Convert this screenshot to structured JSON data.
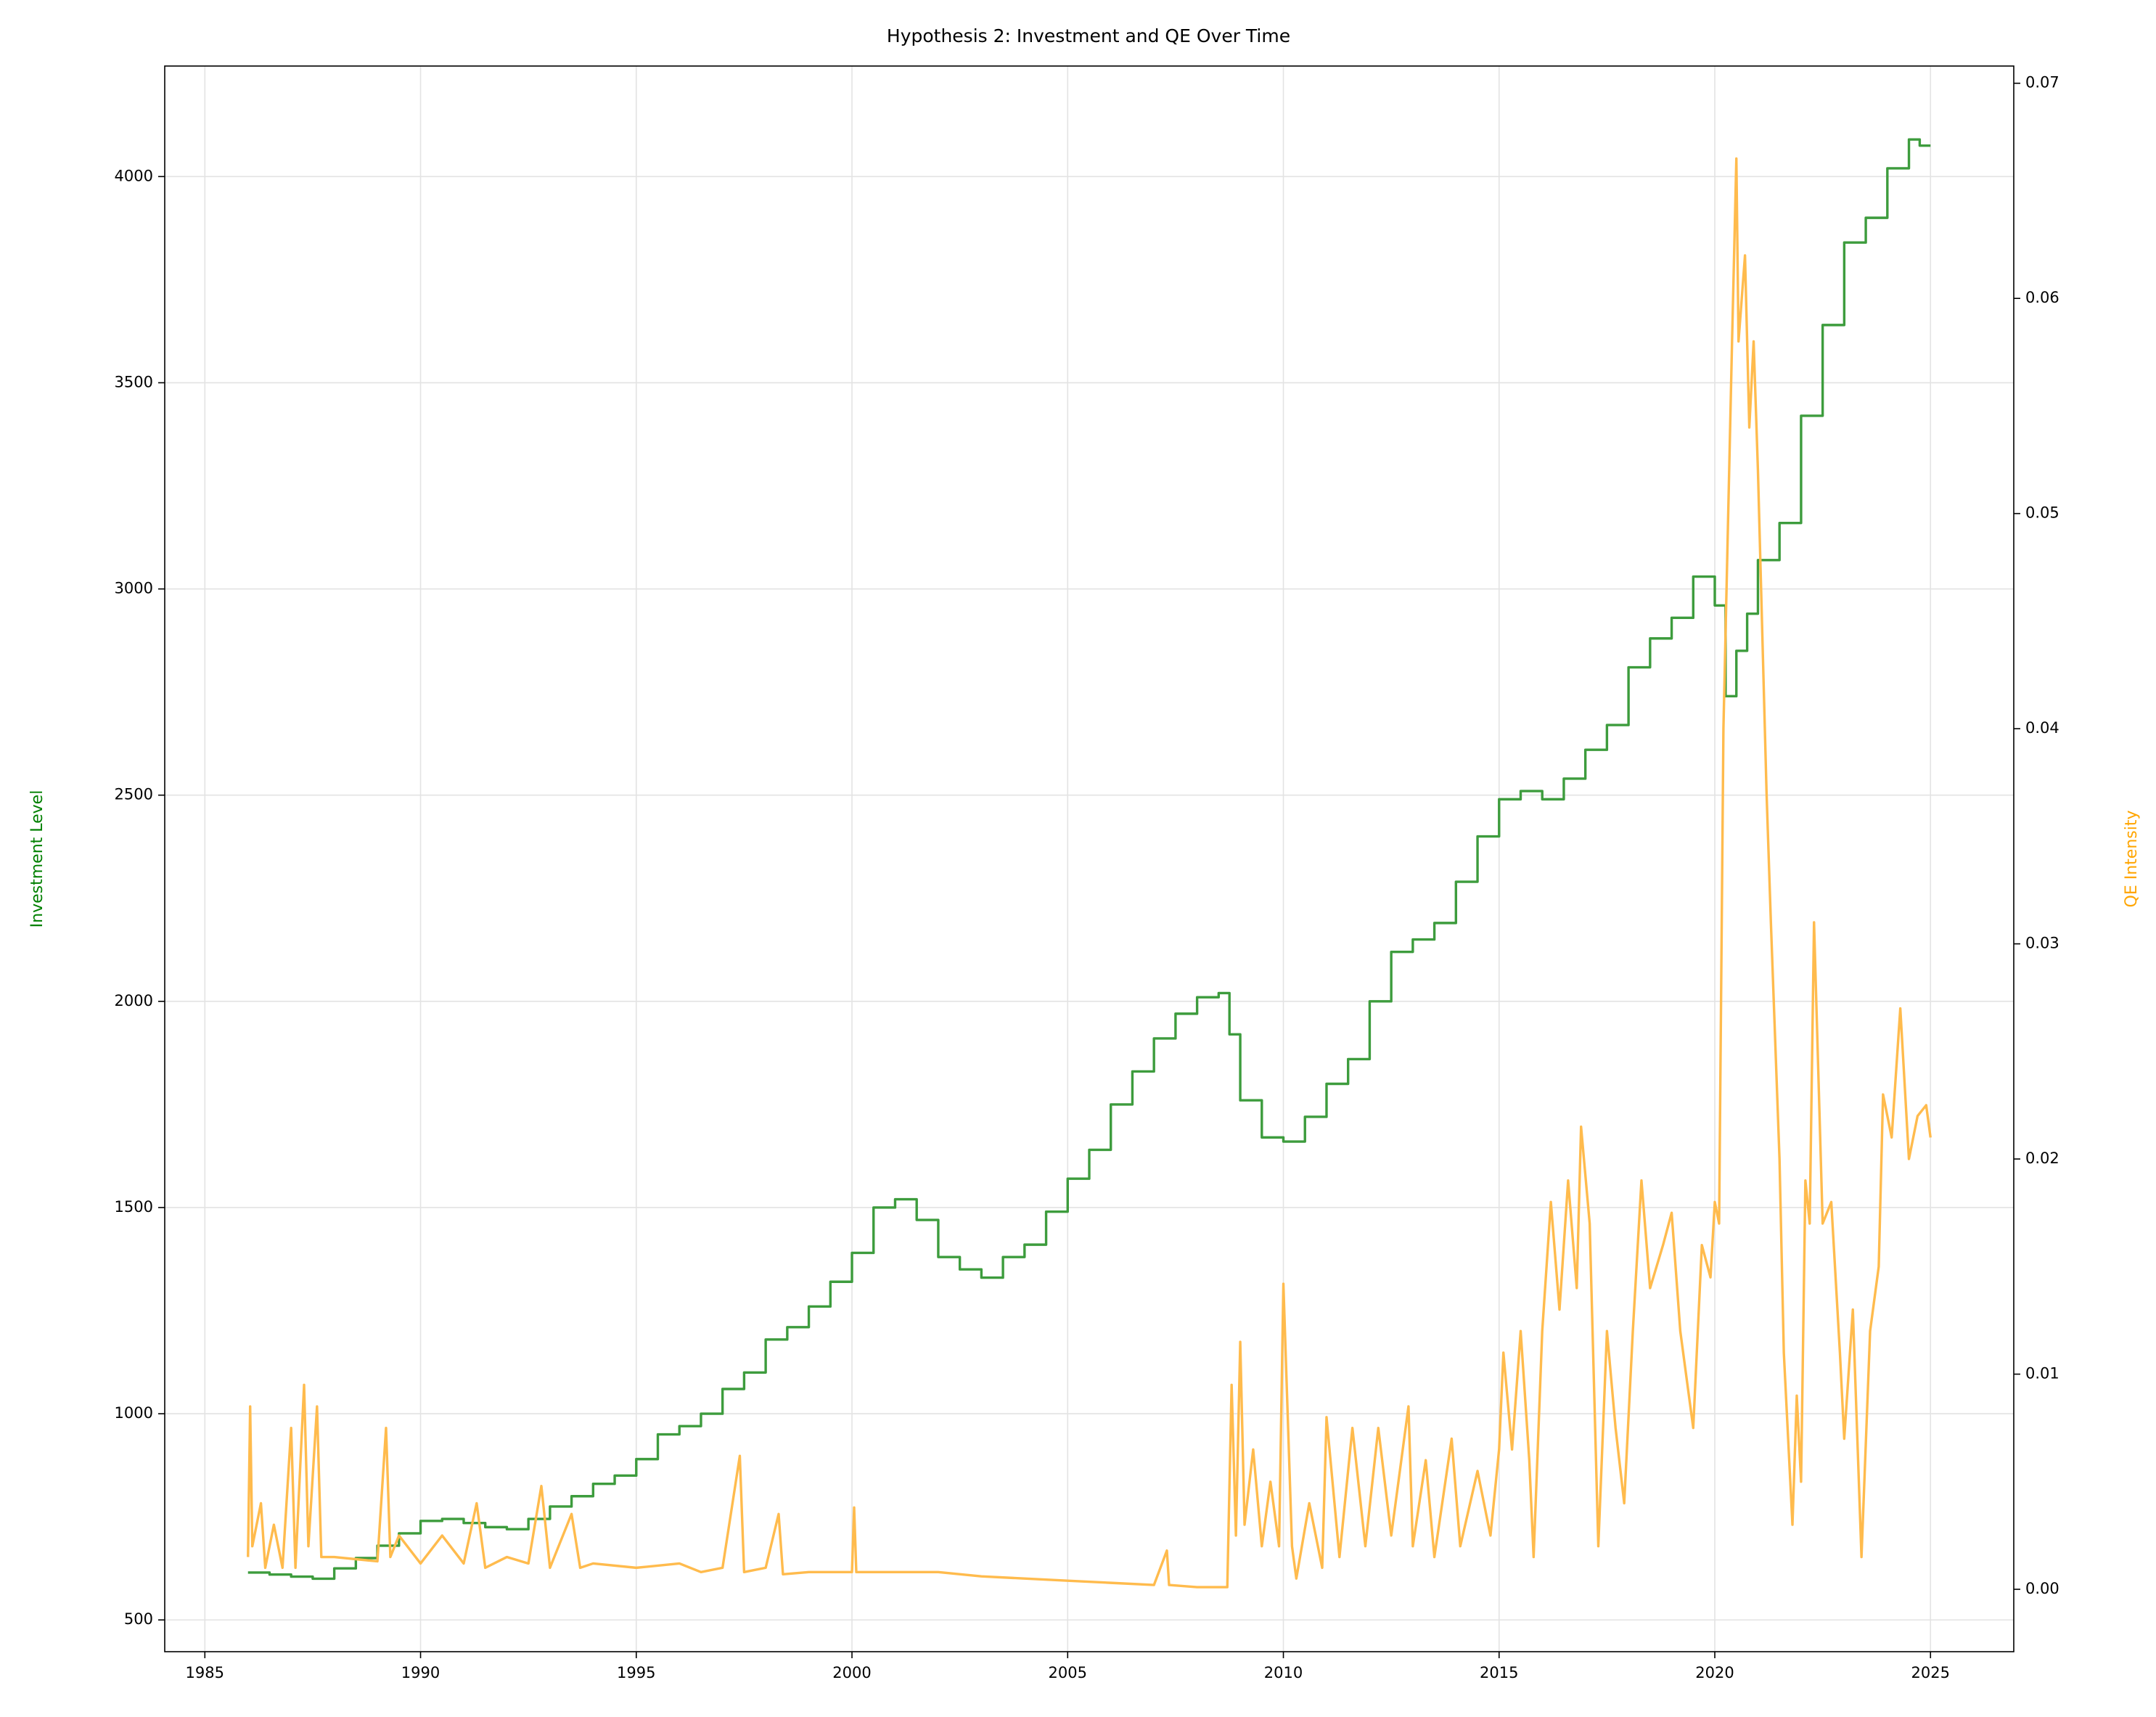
{
  "chart_data": {
    "type": "line",
    "title": "Hypothesis 2: Investment and QE Over Time",
    "ylabel": "Investment Level",
    "ylabel_color": "#008000",
    "y2label": "QE Intensity",
    "y2label_color": "#ffa500",
    "xlim": [
      1984.07,
      2026.93
    ],
    "xticks": [
      1985,
      1990,
      1995,
      2000,
      2005,
      2010,
      2015,
      2020,
      2025
    ],
    "ylim": [
      423,
      4268
    ],
    "yticks": [
      500,
      1000,
      1500,
      2000,
      2500,
      3000,
      3500,
      4000
    ],
    "y2lim": [
      -0.0029,
      0.0708
    ],
    "y2ticks": [
      {
        "value": 0,
        "label": "0.00"
      },
      0.01,
      0.02,
      0.03,
      0.04,
      0.05,
      0.06,
      0.07
    ],
    "grid": true,
    "series": [
      {
        "color": "#3d9c3d",
        "step": true,
        "x": [
          1986.0,
          1986.5,
          1987.0,
          1987.5,
          1988.0,
          1988.5,
          1989.0,
          1989.5,
          1990.0,
          1990.5,
          1991.0,
          1991.5,
          1992.0,
          1992.5,
          1993.0,
          1993.5,
          1994.0,
          1994.5,
          1995.0,
          1995.5,
          1996.0,
          1996.5,
          1997.0,
          1997.5,
          1998.0,
          1998.5,
          1999.0,
          1999.5,
          2000.0,
          2000.5,
          2001.0,
          2001.5,
          2002.0,
          2002.5,
          2003.0,
          2003.5,
          2004.0,
          2004.5,
          2005.0,
          2005.5,
          2006.0,
          2006.5,
          2007.0,
          2007.5,
          2008.0,
          2008.5,
          2008.75,
          2009.0,
          2009.5,
          2010.0,
          2010.5,
          2011.0,
          2011.5,
          2012.0,
          2012.5,
          2013.0,
          2013.5,
          2014.0,
          2014.5,
          2015.0,
          2015.5,
          2016.0,
          2016.5,
          2017.0,
          2017.5,
          2018.0,
          2018.5,
          2019.0,
          2019.5,
          2020.0,
          2020.25,
          2020.5,
          2020.75,
          2021.0,
          2021.5,
          2022.0,
          2022.5,
          2023.0,
          2023.5,
          2024.0,
          2024.5,
          2024.75,
          2025.0
        ],
        "values": [
          615,
          610,
          605,
          600,
          625,
          650,
          680,
          710,
          740,
          745,
          735,
          725,
          720,
          745,
          775,
          800,
          830,
          850,
          890,
          950,
          970,
          1000,
          1060,
          1100,
          1180,
          1210,
          1260,
          1320,
          1390,
          1500,
          1520,
          1470,
          1380,
          1350,
          1330,
          1380,
          1410,
          1490,
          1570,
          1640,
          1750,
          1830,
          1910,
          1970,
          2010,
          2020,
          1920,
          1760,
          1670,
          1660,
          1720,
          1800,
          1860,
          2000,
          2120,
          2150,
          2190,
          2290,
          2400,
          2490,
          2510,
          2490,
          2540,
          2610,
          2670,
          2810,
          2880,
          2930,
          3030,
          2960,
          2740,
          2850,
          2940,
          3070,
          3160,
          3420,
          3640,
          3840,
          3900,
          4020,
          4090,
          4075,
          4075
        ]
      },
      {
        "color": "#ffbb4d",
        "axis": "y2",
        "x": [
          1986.0,
          1986.05,
          1986.1,
          1986.3,
          1986.4,
          1986.6,
          1986.8,
          1987.0,
          1987.1,
          1987.3,
          1987.4,
          1987.6,
          1987.7,
          1988.0,
          1989.0,
          1989.2,
          1989.3,
          1989.5,
          1990.0,
          1990.5,
          1991.0,
          1991.3,
          1991.5,
          1992.0,
          1992.5,
          1992.8,
          1993.0,
          1993.5,
          1993.7,
          1994.0,
          1995.0,
          1996.0,
          1996.5,
          1997.0,
          1997.4,
          1997.5,
          1998.0,
          1998.3,
          1998.4,
          1999.0,
          2000.0,
          2000.05,
          2000.1,
          2001.0,
          2002.0,
          2003.0,
          2004.0,
          2005.0,
          2006.0,
          2007.0,
          2007.3,
          2007.35,
          2008.0,
          2008.7,
          2008.8,
          2008.9,
          2009.0,
          2009.1,
          2009.3,
          2009.5,
          2009.7,
          2009.9,
          2010.0,
          2010.2,
          2010.3,
          2010.6,
          2010.9,
          2011.0,
          2011.3,
          2011.6,
          2011.9,
          2012.2,
          2012.5,
          2012.9,
          2013.0,
          2013.3,
          2013.5,
          2013.9,
          2014.1,
          2014.5,
          2014.8,
          2015.0,
          2015.1,
          2015.3,
          2015.5,
          2015.7,
          2015.8,
          2016.0,
          2016.2,
          2016.4,
          2016.6,
          2016.8,
          2016.9,
          2017.1,
          2017.3,
          2017.5,
          2017.7,
          2017.9,
          2018.1,
          2018.3,
          2018.5,
          2018.8,
          2019.0,
          2019.2,
          2019.5,
          2019.7,
          2019.9,
          2020.0,
          2020.1,
          2020.2,
          2020.4,
          2020.5,
          2020.55,
          2020.7,
          2020.8,
          2020.9,
          2021.0,
          2021.2,
          2021.3,
          2021.5,
          2021.6,
          2021.8,
          2021.9,
          2022.0,
          2022.1,
          2022.2,
          2022.3,
          2022.4,
          2022.5,
          2022.7,
          2022.9,
          2023.0,
          2023.2,
          2023.4,
          2023.6,
          2023.8,
          2023.9,
          2024.1,
          2024.3,
          2024.5,
          2024.7,
          2024.9,
          2025.0
        ],
        "values": [
          0.0015,
          0.0085,
          0.002,
          0.004,
          0.001,
          0.003,
          0.001,
          0.0075,
          0.001,
          0.0095,
          0.002,
          0.0085,
          0.0015,
          0.0015,
          0.0013,
          0.0075,
          0.0015,
          0.0025,
          0.0012,
          0.0025,
          0.0012,
          0.004,
          0.001,
          0.0015,
          0.0012,
          0.0048,
          0.001,
          0.0035,
          0.001,
          0.0012,
          0.001,
          0.0012,
          0.0008,
          0.001,
          0.0062,
          0.0008,
          0.001,
          0.0035,
          0.0007,
          0.0008,
          0.0008,
          0.0038,
          0.0008,
          0.0008,
          0.0008,
          0.0006,
          0.0005,
          0.0004,
          0.0003,
          0.0002,
          0.0018,
          0.0002,
          0.0001,
          0.0001,
          0.0095,
          0.0025,
          0.0115,
          0.003,
          0.0065,
          0.002,
          0.005,
          0.002,
          0.0142,
          0.002,
          0.0005,
          0.004,
          0.001,
          0.008,
          0.0015,
          0.0075,
          0.002,
          0.0075,
          0.0025,
          0.0085,
          0.002,
          0.006,
          0.0015,
          0.007,
          0.002,
          0.0055,
          0.0025,
          0.0065,
          0.011,
          0.0065,
          0.012,
          0.006,
          0.0015,
          0.012,
          0.018,
          0.013,
          0.019,
          0.014,
          0.0215,
          0.017,
          0.002,
          0.012,
          0.0075,
          0.004,
          0.012,
          0.019,
          0.014,
          0.016,
          0.0175,
          0.012,
          0.0075,
          0.016,
          0.0145,
          0.018,
          0.017,
          0.04,
          0.058,
          0.0665,
          0.058,
          0.062,
          0.054,
          0.058,
          0.052,
          0.037,
          0.031,
          0.02,
          0.011,
          0.003,
          0.009,
          0.005,
          0.019,
          0.017,
          0.031,
          0.024,
          0.017,
          0.018,
          0.011,
          0.007,
          0.013,
          0.0015,
          0.012,
          0.015,
          0.023,
          0.021,
          0.027,
          0.02,
          0.022,
          0.0225,
          0.021
        ]
      }
    ]
  }
}
